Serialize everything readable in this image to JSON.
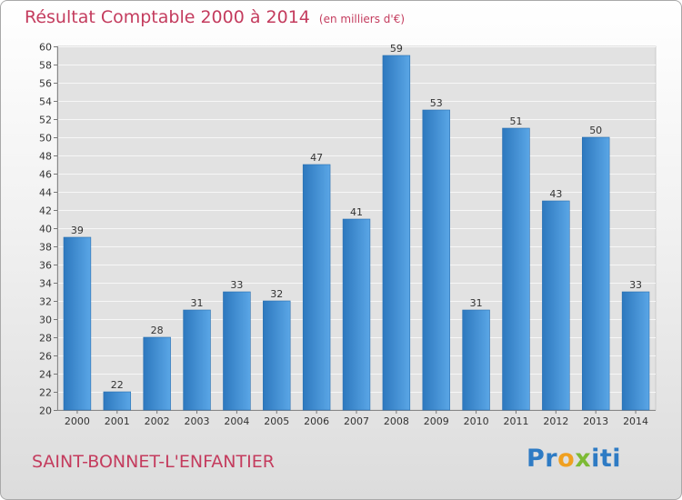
{
  "chart_data": {
    "type": "bar",
    "title": "Résultat Comptable 2000 à 2014",
    "subtitle": "(en milliers d'€)",
    "categories": [
      "2000",
      "2001",
      "2002",
      "2003",
      "2004",
      "2005",
      "2006",
      "2007",
      "2008",
      "2009",
      "2010",
      "2011",
      "2012",
      "2013",
      "2014"
    ],
    "values": [
      39,
      22,
      28,
      31,
      33,
      32,
      47,
      41,
      59,
      53,
      31,
      51,
      43,
      50,
      33
    ],
    "ylim": [
      20,
      60
    ],
    "ytick_step": 2,
    "xlabel": "",
    "ylabel": "",
    "grid": true,
    "bar_color": "#3d8fd6"
  },
  "footer": {
    "place": "SAINT-BONNET-L'ENFANTIER",
    "logo_letters": [
      {
        "char": "P",
        "color": "#2e7bc4"
      },
      {
        "char": "r",
        "color": "#2e7bc4"
      },
      {
        "char": "o",
        "color": "#f0a020"
      },
      {
        "char": "x",
        "color": "#7dba35"
      },
      {
        "char": "i",
        "color": "#2e7bc4"
      },
      {
        "char": "t",
        "color": "#2e7bc4"
      },
      {
        "char": "i",
        "color": "#2e7bc4"
      }
    ]
  }
}
